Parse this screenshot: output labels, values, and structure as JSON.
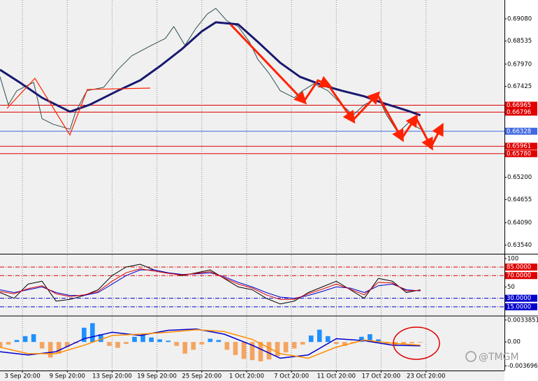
{
  "watermark": "@TMGM",
  "chart_data": [
    {
      "type": "line",
      "xlim": [
        0,
        180
      ],
      "ylim": [
        0.6333,
        0.6954
      ],
      "yticks": [
        {
          "value": 0.6908,
          "label": "0.69080"
        },
        0.68535,
        {
          "value": 0.6797,
          "label": "0.67970"
        },
        0.67425,
        {
          "value": 0.652,
          "label": "0.65200"
        },
        0.64655,
        {
          "value": 0.6409,
          "label": "0.64090"
        },
        {
          "value": 0.6354,
          "label": "0.63540"
        }
      ],
      "levels": [
        {
          "value": 0.66965,
          "color": "#e00000"
        },
        {
          "value": 0.66796,
          "color": "#e00000"
        },
        {
          "value": 0.66328,
          "color": "#4169e1"
        },
        {
          "value": 0.65961,
          "color": "#e00000"
        },
        {
          "value": 0.6578,
          "label": "0.65780",
          "color": "#e00000"
        }
      ],
      "level_style": "solid",
      "series": [
        {
          "color": "#2f4f4f",
          "width": 1,
          "x": [
            0,
            3,
            6,
            12,
            15,
            19,
            25,
            27,
            31,
            37,
            42,
            47,
            54,
            59,
            62,
            66,
            70,
            74,
            77,
            81,
            85,
            89,
            92,
            96,
            100,
            105,
            108,
            112,
            117,
            122,
            126,
            130,
            135,
            138,
            142,
            146,
            150
          ],
          "values": [
            0.67661,
            0.66977,
            0.67319,
            0.67524,
            0.66635,
            0.66498,
            0.66378,
            0.66806,
            0.67319,
            0.67404,
            0.67832,
            0.68174,
            0.6843,
            0.68601,
            0.68892,
            0.6843,
            0.68858,
            0.692,
            0.69336,
            0.69029,
            0.68892,
            0.68516,
            0.68088,
            0.67746,
            0.67319,
            0.67148,
            0.67319,
            0.6749,
            0.67319,
            0.66977,
            0.6672,
            0.66977,
            0.67148,
            0.6672,
            0.66293,
            0.66549,
            0.66378
          ]
        },
        {
          "color": "#191970",
          "width": 3,
          "x": [
            0,
            7,
            15,
            25,
            32,
            42,
            50,
            57,
            65,
            72,
            77,
            85,
            92,
            100,
            107,
            115,
            122,
            130,
            137,
            145,
            150
          ],
          "values": [
            0.67832,
            0.67524,
            0.67148,
            0.66806,
            0.66977,
            0.67319,
            0.67575,
            0.67917,
            0.68345,
            0.68772,
            0.68994,
            0.68943,
            0.68516,
            0.68003,
            0.67661,
            0.67456,
            0.67319,
            0.67182,
            0.67011,
            0.6684,
            0.6672
          ]
        }
      ]
    },
    {
      "type": "line",
      "xlim": [
        0,
        180
      ],
      "ylim": [
        0,
        106
      ],
      "yticks": [
        100,
        50
      ],
      "levels": [
        {
          "value": 85,
          "label": "85.0000",
          "color": "#e00000"
        },
        {
          "value": 70,
          "label": "70.0000",
          "color": "#e00000"
        },
        {
          "value": 30,
          "label": "30.0000",
          "color": "#0000cd"
        },
        {
          "value": 15,
          "label": "15.0000",
          "color": "#0000cd"
        }
      ],
      "level_style": "dashdot",
      "series": [
        {
          "color": "#000000",
          "width": 1,
          "x": [
            0,
            5,
            10,
            15,
            20,
            25,
            30,
            35,
            40,
            45,
            50,
            55,
            60,
            65,
            70,
            75,
            80,
            85,
            90,
            95,
            100,
            105,
            110,
            115,
            120,
            125,
            130,
            135,
            140,
            145,
            150
          ],
          "values": [
            40,
            30,
            55,
            60,
            25,
            28,
            35,
            45,
            70,
            85,
            90,
            80,
            75,
            70,
            75,
            80,
            65,
            50,
            45,
            30,
            20,
            25,
            40,
            50,
            60,
            45,
            30,
            65,
            60,
            40,
            45
          ]
        },
        {
          "color": "#0000cd",
          "width": 1,
          "x": [
            0,
            5,
            10,
            15,
            20,
            25,
            30,
            35,
            40,
            45,
            50,
            55,
            60,
            65,
            70,
            75,
            80,
            85,
            90,
            95,
            100,
            105,
            110,
            115,
            120,
            125,
            130,
            135,
            140,
            145,
            150
          ],
          "values": [
            45,
            40,
            45,
            50,
            40,
            35,
            35,
            40,
            55,
            70,
            80,
            80,
            75,
            72,
            73,
            75,
            68,
            58,
            50,
            40,
            32,
            30,
            35,
            42,
            50,
            48,
            40,
            52,
            55,
            45,
            43
          ]
        },
        {
          "color": "#e00000",
          "width": 1,
          "x": [
            0,
            5,
            10,
            15,
            20,
            25,
            30,
            35,
            40,
            45,
            50,
            55,
            60,
            65,
            70,
            75,
            80,
            85,
            90,
            95,
            100,
            105,
            110,
            115,
            120,
            125,
            130,
            135,
            140,
            145,
            150
          ],
          "values": [
            42,
            38,
            47,
            52,
            38,
            33,
            36,
            42,
            60,
            75,
            82,
            78,
            74,
            71,
            74,
            77,
            66,
            55,
            48,
            36,
            28,
            28,
            38,
            46,
            55,
            46,
            36,
            58,
            57,
            43,
            44
          ]
        }
      ]
    },
    {
      "type": "macd",
      "xlim": [
        0,
        180
      ],
      "ylim": [
        -0.0044,
        0.0039
      ],
      "yticks": [
        0.0033851,
        {
          "value": 0,
          "label": "0.00"
        },
        -0.0036967
      ],
      "xticks": [
        {
          "value": 8,
          "label": "3 Sep 20:00"
        },
        {
          "value": 24,
          "label": "9 Sep 20:00"
        },
        {
          "value": 40,
          "label": "13 Sep 20:00"
        },
        {
          "value": 56,
          "label": "19 Sep 20:00"
        },
        {
          "value": 72,
          "label": "25 Sep 20:00"
        },
        {
          "value": 88,
          "label": "1 Oct 20:00"
        },
        {
          "value": 104,
          "label": "7 Oct 20:00"
        },
        {
          "value": 120,
          "label": "11 Oct 20:00"
        },
        {
          "value": 136,
          "label": "17 Oct 20:00"
        },
        {
          "value": 152,
          "label": "23 Oct 20:00"
        }
      ],
      "histogram": {
        "up_color": "#1e90ff",
        "down_color": "#f4a460",
        "x": [
          0,
          3,
          6,
          9,
          12,
          15,
          18,
          21,
          24,
          27,
          30,
          33,
          36,
          39,
          42,
          45,
          48,
          51,
          54,
          57,
          60,
          63,
          66,
          69,
          72,
          75,
          78,
          81,
          84,
          87,
          90,
          93,
          96,
          99,
          102,
          105,
          108,
          111,
          114,
          117,
          120,
          123,
          126,
          129,
          132,
          135,
          138,
          141,
          144,
          147,
          150
        ],
        "values": [
          -0.0008,
          -0.0004,
          0.0003,
          0.0009,
          0.0012,
          -0.001,
          -0.0024,
          -0.0018,
          -0.0008,
          -0.0002,
          0.0022,
          0.0029,
          0.0012,
          -0.0006,
          -0.0009,
          -0.0003,
          0.0008,
          0.0011,
          0.0007,
          0.0004,
          0.0002,
          -0.0006,
          -0.0018,
          -0.0012,
          -0.0004,
          0.0005,
          0.0003,
          -0.0012,
          -0.002,
          -0.0026,
          -0.0028,
          -0.003,
          -0.0027,
          -0.0022,
          -0.0016,
          -0.001,
          -0.0004,
          0.001,
          0.0019,
          0.0009,
          -0.0003,
          -0.0006,
          -0.0002,
          0.0008,
          0.0012,
          0.0004,
          -0.0003,
          -0.0006,
          -0.0004,
          -0.0002,
          -0.0001
        ]
      },
      "series": [
        {
          "color": "#0000cd",
          "width": 1.5,
          "x": [
            0,
            10,
            20,
            30,
            40,
            50,
            60,
            70,
            80,
            90,
            100,
            110,
            120,
            130,
            140,
            150
          ],
          "values": [
            -0.0015,
            -0.002,
            -0.0015,
            0.0005,
            0.0015,
            0.001,
            0.0018,
            0.002,
            0.0012,
            -0.0005,
            -0.0025,
            -0.002,
            0.0005,
            0.0002,
            -0.0005,
            -0.0006
          ]
        },
        {
          "color": "#ff8c00",
          "width": 1.5,
          "x": [
            0,
            10,
            20,
            30,
            40,
            50,
            60,
            70,
            80,
            90,
            100,
            110,
            120,
            130,
            140,
            150
          ],
          "values": [
            -0.0008,
            -0.0018,
            -0.0018,
            -0.0005,
            0.001,
            0.0012,
            0.0015,
            0.0019,
            0.0016,
            0.0004,
            -0.0018,
            -0.0025,
            -0.0008,
            0.0003,
            -0.0002,
            -0.0005
          ]
        }
      ]
    }
  ]
}
